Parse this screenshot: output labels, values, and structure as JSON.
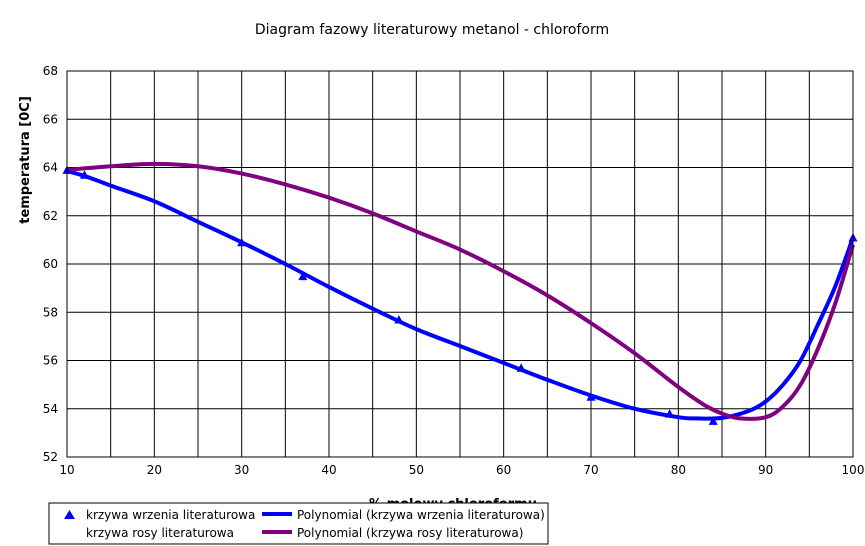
{
  "chart_data": {
    "type": "scatter",
    "title": "Diagram fazowy literaturowy metanol - chloroform",
    "xlabel": "% molowy chloroformu",
    "ylabel": "temperatura [0C]",
    "xlim": [
      10,
      100
    ],
    "ylim": [
      52,
      68
    ],
    "x_ticks": [
      10,
      20,
      30,
      40,
      50,
      60,
      70,
      80,
      90,
      100
    ],
    "y_ticks": [
      52,
      54,
      56,
      58,
      60,
      62,
      64,
      66,
      68
    ],
    "grid": true,
    "legend_position": "bottom-left",
    "series": [
      {
        "name": "krzywa wrzenia literaturowa",
        "kind": "points",
        "color": "#0000ff",
        "x": [
          10,
          12,
          30,
          37,
          48,
          62,
          70,
          79,
          84,
          100
        ],
        "y": [
          63.9,
          63.7,
          60.9,
          59.5,
          57.7,
          55.7,
          54.5,
          53.8,
          53.5,
          61.1
        ]
      },
      {
        "name": "krzywa rosy literaturowa",
        "kind": "points",
        "color": "#800080",
        "x": [],
        "y": []
      },
      {
        "name": "Polynomial (krzywa wrzenia literaturowa)",
        "kind": "line",
        "color": "#0000ff",
        "x": [
          10,
          12,
          15,
          20,
          25,
          30,
          35,
          40,
          45,
          50,
          55,
          60,
          65,
          70,
          75,
          80,
          82,
          85,
          88,
          90,
          92,
          94,
          96,
          98,
          100
        ],
        "y": [
          63.85,
          63.65,
          63.25,
          62.6,
          61.75,
          60.9,
          60.0,
          59.05,
          58.15,
          57.3,
          56.6,
          55.9,
          55.2,
          54.55,
          54.0,
          53.65,
          53.6,
          53.62,
          53.9,
          54.3,
          55.0,
          56.0,
          57.5,
          59.1,
          61.1
        ]
      },
      {
        "name": "Polynomial (krzywa rosy literaturowa)",
        "kind": "line",
        "color": "#800080",
        "x": [
          10,
          15,
          20,
          25,
          30,
          35,
          40,
          45,
          50,
          55,
          60,
          65,
          70,
          75,
          80,
          83,
          85,
          87,
          90,
          92,
          94,
          96,
          98,
          100
        ],
        "y": [
          63.9,
          64.05,
          64.15,
          64.05,
          63.75,
          63.3,
          62.75,
          62.1,
          61.35,
          60.6,
          59.7,
          58.7,
          57.55,
          56.3,
          54.9,
          54.15,
          53.8,
          53.6,
          53.65,
          54.1,
          55.0,
          56.5,
          58.4,
          60.8
        ]
      }
    ]
  }
}
